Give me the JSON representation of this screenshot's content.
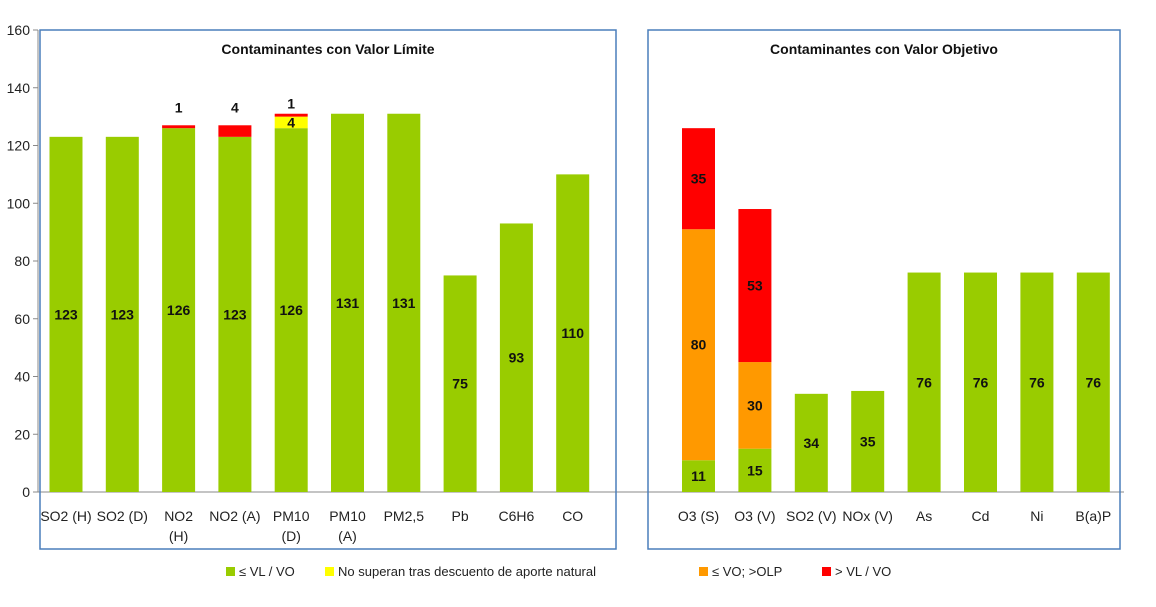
{
  "chart_data": {
    "type": "bar",
    "stacked": true,
    "ylim": [
      0,
      160
    ],
    "yticks": [
      0,
      20,
      40,
      60,
      80,
      100,
      120,
      140,
      160
    ],
    "grid": false,
    "legend_position": "bottom",
    "legend": [
      {
        "label": "≤ VL / VO",
        "color": "#99cc00"
      },
      {
        "label": "No superan tras descuento de aporte natural",
        "color": "#ffff00"
      },
      {
        "label": "≤ VO; >OLP",
        "color": "#ff9900"
      },
      {
        "label": "> VL / VO",
        "color": "#ff0000"
      }
    ],
    "panels": [
      {
        "title": "Contaminantes con Valor Límite",
        "categories": [
          {
            "label": [
              "SO2 (H)"
            ],
            "green": 123,
            "yellow": 0,
            "orange": 0,
            "red": 0
          },
          {
            "label": [
              "SO2 (D)"
            ],
            "green": 123,
            "yellow": 0,
            "orange": 0,
            "red": 0
          },
          {
            "label": [
              "NO2",
              "(H)"
            ],
            "green": 126,
            "yellow": 0,
            "orange": 0,
            "red": 1
          },
          {
            "label": [
              "NO2 (A)"
            ],
            "green": 123,
            "yellow": 0,
            "orange": 0,
            "red": 4
          },
          {
            "label": [
              "PM10",
              "(D)"
            ],
            "green": 126,
            "yellow": 4,
            "orange": 0,
            "red": 1
          },
          {
            "label": [
              "PM10",
              "(A)"
            ],
            "green": 131,
            "yellow": 0,
            "orange": 0,
            "red": 0
          },
          {
            "label": [
              "PM2,5"
            ],
            "green": 131,
            "yellow": 0,
            "orange": 0,
            "red": 0
          },
          {
            "label": [
              "Pb"
            ],
            "green": 75,
            "yellow": 0,
            "orange": 0,
            "red": 0
          },
          {
            "label": [
              "C6H6"
            ],
            "green": 93,
            "yellow": 0,
            "orange": 0,
            "red": 0
          },
          {
            "label": [
              "CO"
            ],
            "green": 110,
            "yellow": 0,
            "orange": 0,
            "red": 0
          }
        ]
      },
      {
        "title": "Contaminantes con Valor Objetivo",
        "categories": [
          {
            "label": [
              "O3 (S)"
            ],
            "green": 11,
            "yellow": 0,
            "orange": 80,
            "red": 35
          },
          {
            "label": [
              "O3 (V)"
            ],
            "green": 15,
            "yellow": 0,
            "orange": 30,
            "red": 53
          },
          {
            "label": [
              "SO2 (V)"
            ],
            "green": 34,
            "yellow": 0,
            "orange": 0,
            "red": 0
          },
          {
            "label": [
              "NOx (V)"
            ],
            "green": 35,
            "yellow": 0,
            "orange": 0,
            "red": 0
          },
          {
            "label": [
              "As"
            ],
            "green": 76,
            "yellow": 0,
            "orange": 0,
            "red": 0
          },
          {
            "label": [
              "Cd"
            ],
            "green": 76,
            "yellow": 0,
            "orange": 0,
            "red": 0
          },
          {
            "label": [
              "Ni"
            ],
            "green": 76,
            "yellow": 0,
            "orange": 0,
            "red": 0
          },
          {
            "label": [
              "B(a)P"
            ],
            "green": 76,
            "yellow": 0,
            "orange": 0,
            "red": 0
          }
        ]
      }
    ],
    "colors": {
      "green": "#99cc00",
      "yellow": "#ffff00",
      "orange": "#ff9900",
      "red": "#ff0000",
      "frame": "#4a7ebb"
    }
  }
}
